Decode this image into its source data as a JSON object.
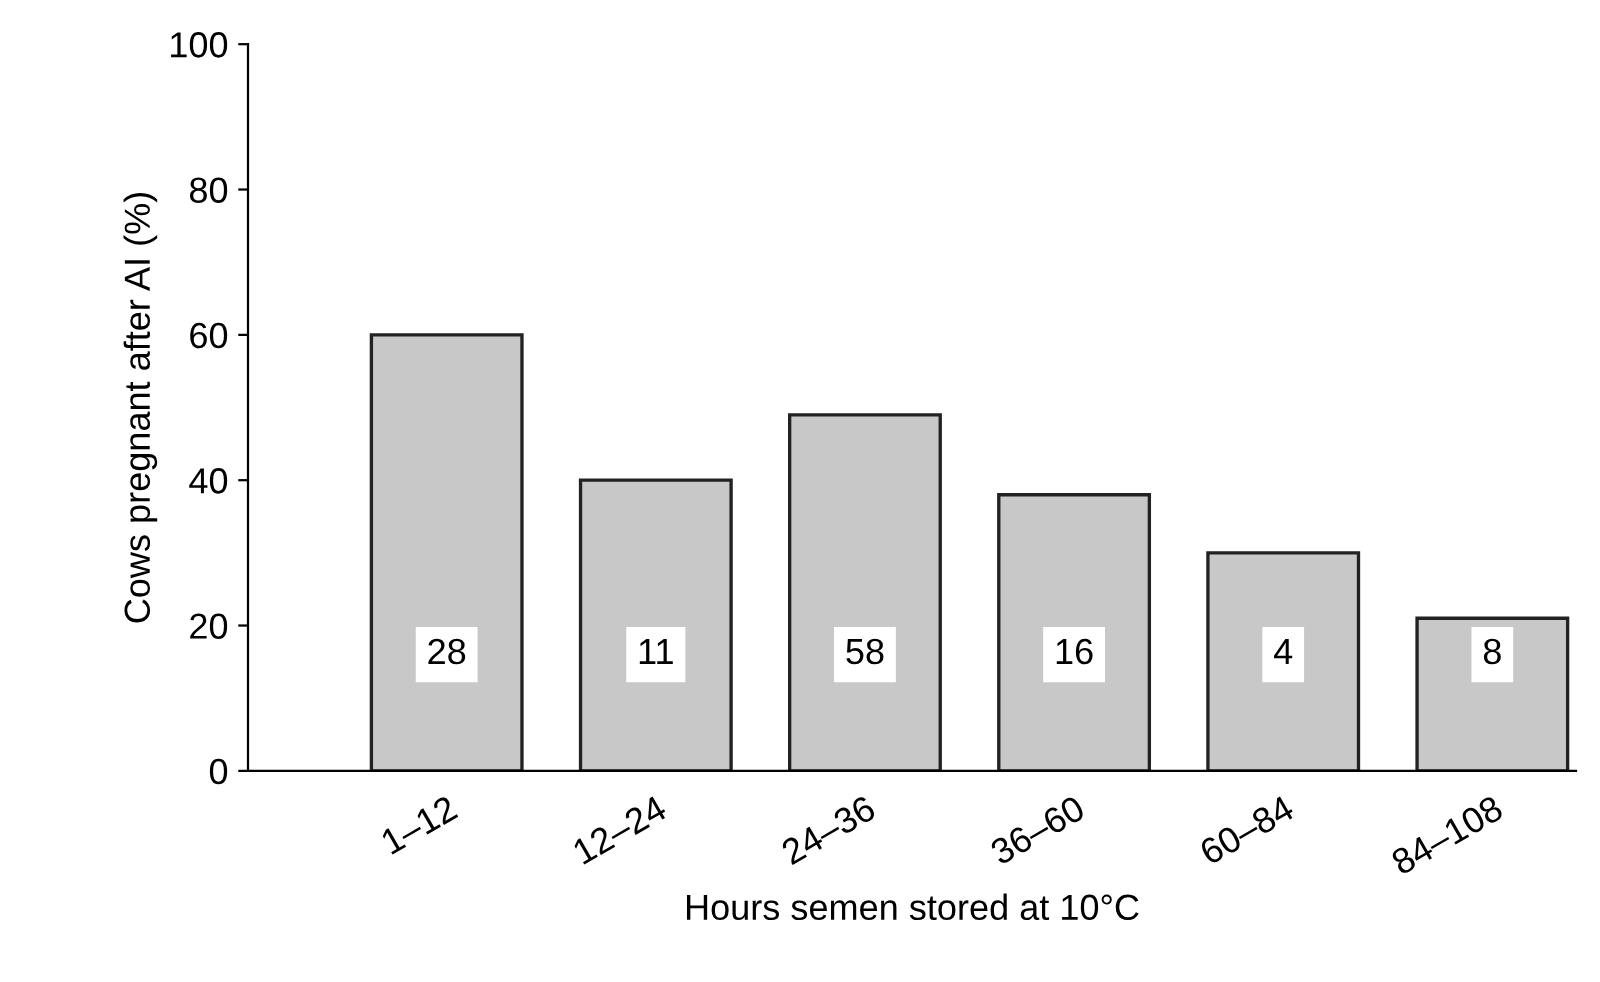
{
  "chart_data": {
    "type": "bar",
    "xlabel": "Hours semen stored at 10°C",
    "ylabel": "Cows pregnant after AI (%)",
    "categories": [
      "1–12",
      "12–24",
      "24–36",
      "36–60",
      "60–84",
      "84–108"
    ],
    "values": [
      60,
      40,
      49,
      38,
      30,
      21
    ],
    "color": "#c8c8c8",
    "ylim": [
      0,
      100
    ],
    "yticks": [
      0,
      20,
      40,
      60,
      80,
      100
    ],
    "grid": false,
    "legend": false,
    "annotations": [
      {
        "text": "28",
        "x": "1–12",
        "y": 16
      },
      {
        "text": "11",
        "x": "12–24",
        "y": 16
      },
      {
        "text": "58",
        "x": "24–36",
        "y": 16
      },
      {
        "text": "16",
        "x": "36–60",
        "y": 16
      },
      {
        "text": "4",
        "x": "60–84",
        "y": 16
      },
      {
        "text": "8",
        "x": "84–108",
        "y": 16
      }
    ]
  }
}
